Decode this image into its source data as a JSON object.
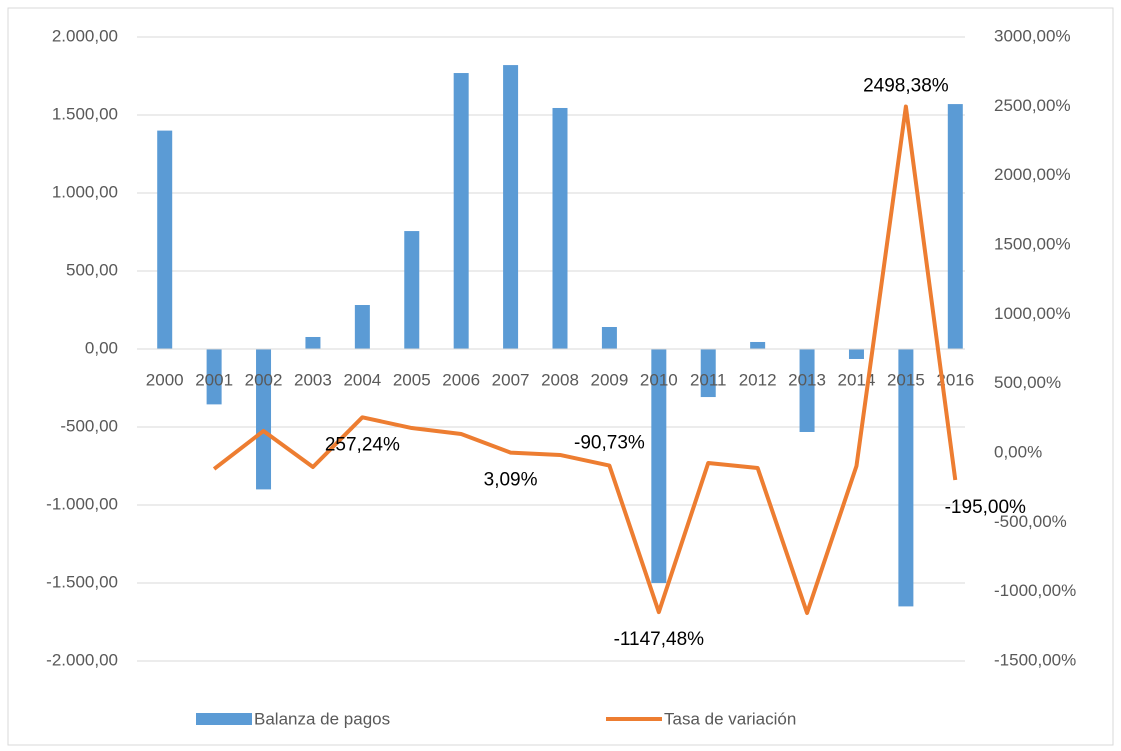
{
  "chart_data": {
    "type": "bar_line",
    "categories": [
      "2000",
      "2001",
      "2002",
      "2003",
      "2004",
      "2005",
      "2006",
      "2007",
      "2008",
      "2009",
      "2010",
      "2011",
      "2012",
      "2013",
      "2014",
      "2015",
      "2016"
    ],
    "series": [
      {
        "name": "Balanza de pagos",
        "type": "bar",
        "color": "#5b9bd5",
        "values": [
          1400,
          -355,
          -900,
          77,
          282,
          756,
          1769,
          1820,
          1545,
          141,
          -1500,
          -308,
          45,
          -532,
          -64,
          -1650,
          1570
        ]
      },
      {
        "name": "Tasa de variación",
        "type": "line",
        "axis": "y2",
        "color": "#ed7d31",
        "values": [
          null,
          -115,
          159,
          -101,
          257.24,
          180,
          137,
          3.09,
          -14,
          -90.73,
          -1147.48,
          -72,
          -108,
          -1154,
          -94,
          2498.38,
          -195.0
        ],
        "value_labels": [
          null,
          null,
          null,
          null,
          "257,24%",
          null,
          null,
          "3,09%",
          null,
          "-90,73%",
          "-1147,48%",
          null,
          null,
          null,
          null,
          "2498,38%",
          "-195,00%"
        ]
      }
    ],
    "ylim": [
      -2000,
      2000
    ],
    "yticks": [
      {
        "value": -2000,
        "label": "-2.000,00"
      },
      {
        "value": -1500,
        "label": "-1.500,00"
      },
      {
        "value": -1000,
        "label": "-1.000,00"
      },
      {
        "value": -500,
        "label": "-500,00"
      },
      {
        "value": 0,
        "label": "0,00"
      },
      {
        "value": 500,
        "label": "500,00"
      },
      {
        "value": 1000,
        "label": "1.000,00"
      },
      {
        "value": 1500,
        "label": "1.500,00"
      },
      {
        "value": 2000,
        "label": "2.000,00"
      }
    ],
    "y2lim": [
      -1500,
      3000
    ],
    "y2ticks": [
      {
        "value": -1500,
        "label": "-1500,00%"
      },
      {
        "value": -1000,
        "label": "-1000,00%"
      },
      {
        "value": -500,
        "label": "-500,00%"
      },
      {
        "value": 0,
        "label": "0,00%"
      },
      {
        "value": 500,
        "label": "500,00%"
      },
      {
        "value": 1000,
        "label": "1000,00%"
      },
      {
        "value": 1500,
        "label": "1500,00%"
      },
      {
        "value": 2000,
        "label": "2000,00%"
      },
      {
        "value": 2500,
        "label": "2500,00%"
      },
      {
        "value": 3000,
        "label": "3000,00%"
      }
    ],
    "grid": true,
    "legend": "bottom"
  }
}
